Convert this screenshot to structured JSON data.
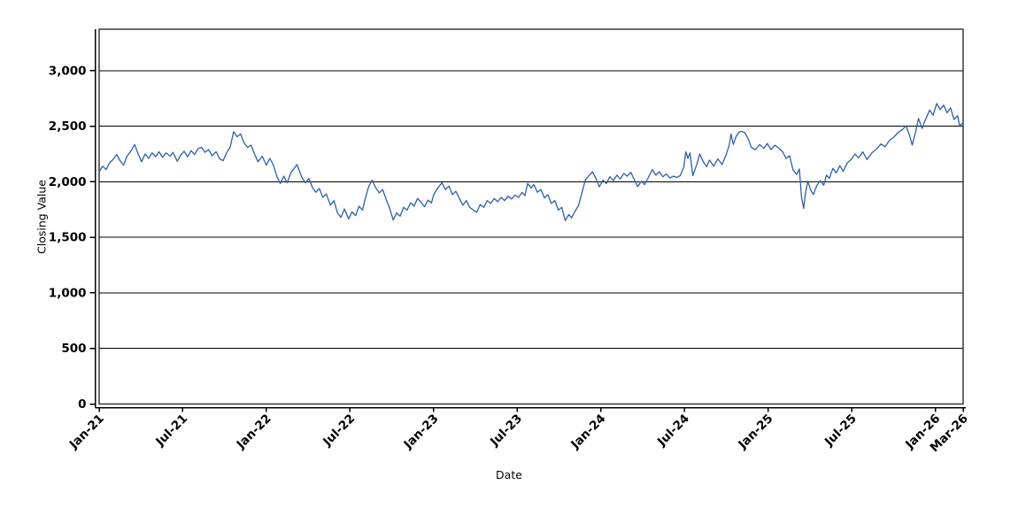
{
  "chart_data": {
    "type": "line",
    "title": "",
    "xlabel": "Date",
    "ylabel": "Closing Value",
    "grid": "horizontal",
    "legend": "none",
    "xlim_months": [
      0,
      62
    ],
    "x_axis_epoch": "Jan-21",
    "ylim": [
      0,
      3373
    ],
    "x_ticks": [
      {
        "m": 0,
        "label": "Jan-21"
      },
      {
        "m": 6,
        "label": "Jul-21"
      },
      {
        "m": 12,
        "label": "Jan-22"
      },
      {
        "m": 18,
        "label": "Jul-22"
      },
      {
        "m": 24,
        "label": "Jan-23"
      },
      {
        "m": 30,
        "label": "Jul-23"
      },
      {
        "m": 36,
        "label": "Jan-24"
      },
      {
        "m": 42,
        "label": "Jul-24"
      },
      {
        "m": 48,
        "label": "Jan-25"
      },
      {
        "m": 54,
        "label": "Jul-25"
      },
      {
        "m": 60,
        "label": "Jan-26"
      },
      {
        "m": 62,
        "label": "Mar-26"
      }
    ],
    "y_ticks": [
      {
        "v": 0,
        "label": "0"
      },
      {
        "v": 500,
        "label": "500"
      },
      {
        "v": 1000,
        "label": "1,000"
      },
      {
        "v": 1500,
        "label": "1,500"
      },
      {
        "v": 2000,
        "label": "2,000"
      },
      {
        "v": 2500,
        "label": "2,500"
      },
      {
        "v": 3000,
        "label": "3,000"
      }
    ],
    "colors": {
      "line": "#2d5fa8",
      "grid": "#000000",
      "frame": "#2b2b2b",
      "axis": "#000000",
      "background": "#ffffff"
    },
    "series": [
      {
        "name": "Closing Value",
        "points": [
          [
            0,
            2090
          ],
          [
            0.25,
            2140
          ],
          [
            0.5,
            2110
          ],
          [
            0.75,
            2170
          ],
          [
            1,
            2200
          ],
          [
            1.25,
            2245
          ],
          [
            1.5,
            2190
          ],
          [
            1.75,
            2150
          ],
          [
            2,
            2230
          ],
          [
            2.3,
            2280
          ],
          [
            2.55,
            2335
          ],
          [
            2.8,
            2250
          ],
          [
            3.05,
            2180
          ],
          [
            3.3,
            2250
          ],
          [
            3.55,
            2210
          ],
          [
            3.8,
            2260
          ],
          [
            4.05,
            2225
          ],
          [
            4.3,
            2270
          ],
          [
            4.55,
            2220
          ],
          [
            4.8,
            2260
          ],
          [
            5.1,
            2230
          ],
          [
            5.3,
            2265
          ],
          [
            5.6,
            2185
          ],
          [
            5.85,
            2240
          ],
          [
            6.1,
            2275
          ],
          [
            6.35,
            2225
          ],
          [
            6.6,
            2280
          ],
          [
            6.85,
            2245
          ],
          [
            7.1,
            2300
          ],
          [
            7.35,
            2310
          ],
          [
            7.6,
            2265
          ],
          [
            7.85,
            2290
          ],
          [
            8.1,
            2235
          ],
          [
            8.4,
            2270
          ],
          [
            8.65,
            2205
          ],
          [
            8.9,
            2190
          ],
          [
            9.15,
            2260
          ],
          [
            9.4,
            2310
          ],
          [
            9.65,
            2450
          ],
          [
            9.9,
            2405
          ],
          [
            10.15,
            2430
          ],
          [
            10.4,
            2350
          ],
          [
            10.65,
            2310
          ],
          [
            10.9,
            2330
          ],
          [
            11.15,
            2250
          ],
          [
            11.4,
            2180
          ],
          [
            11.7,
            2230
          ],
          [
            12,
            2150
          ],
          [
            12.25,
            2210
          ],
          [
            12.5,
            2150
          ],
          [
            12.75,
            2050
          ],
          [
            13,
            1985
          ],
          [
            13.25,
            2050
          ],
          [
            13.5,
            1990
          ],
          [
            13.75,
            2080
          ],
          [
            14,
            2120
          ],
          [
            14.2,
            2155
          ],
          [
            14.55,
            2040
          ],
          [
            14.8,
            1990
          ],
          [
            15.05,
            2030
          ],
          [
            15.3,
            1950
          ],
          [
            15.55,
            1905
          ],
          [
            15.8,
            1940
          ],
          [
            16.05,
            1860
          ],
          [
            16.3,
            1890
          ],
          [
            16.6,
            1790
          ],
          [
            16.85,
            1830
          ],
          [
            17.1,
            1720
          ],
          [
            17.35,
            1680
          ],
          [
            17.6,
            1755
          ],
          [
            17.9,
            1665
          ],
          [
            18.15,
            1730
          ],
          [
            18.4,
            1695
          ],
          [
            18.65,
            1780
          ],
          [
            18.9,
            1745
          ],
          [
            19.1,
            1850
          ],
          [
            19.35,
            1960
          ],
          [
            19.6,
            2015
          ],
          [
            19.85,
            1945
          ],
          [
            20.1,
            1900
          ],
          [
            20.35,
            1930
          ],
          [
            20.6,
            1840
          ],
          [
            20.85,
            1760
          ],
          [
            21.1,
            1655
          ],
          [
            21.35,
            1720
          ],
          [
            21.6,
            1690
          ],
          [
            21.85,
            1770
          ],
          [
            22.1,
            1745
          ],
          [
            22.35,
            1810
          ],
          [
            22.6,
            1780
          ],
          [
            22.85,
            1850
          ],
          [
            23.1,
            1815
          ],
          [
            23.35,
            1775
          ],
          [
            23.6,
            1835
          ],
          [
            23.85,
            1810
          ],
          [
            24,
            1880
          ],
          [
            24.3,
            1945
          ],
          [
            24.6,
            1990
          ],
          [
            24.85,
            1930
          ],
          [
            25.1,
            1960
          ],
          [
            25.35,
            1885
          ],
          [
            25.6,
            1915
          ],
          [
            25.85,
            1850
          ],
          [
            26.1,
            1790
          ],
          [
            26.35,
            1830
          ],
          [
            26.6,
            1770
          ],
          [
            26.85,
            1745
          ],
          [
            27.1,
            1725
          ],
          [
            27.35,
            1795
          ],
          [
            27.6,
            1770
          ],
          [
            27.85,
            1830
          ],
          [
            28.1,
            1805
          ],
          [
            28.35,
            1850
          ],
          [
            28.6,
            1820
          ],
          [
            28.85,
            1860
          ],
          [
            29.1,
            1830
          ],
          [
            29.35,
            1870
          ],
          [
            29.6,
            1845
          ],
          [
            29.85,
            1880
          ],
          [
            30.1,
            1860
          ],
          [
            30.35,
            1905
          ],
          [
            30.55,
            1875
          ],
          [
            30.75,
            1985
          ],
          [
            31,
            1945
          ],
          [
            31.2,
            1975
          ],
          [
            31.45,
            1905
          ],
          [
            31.7,
            1930
          ],
          [
            31.95,
            1855
          ],
          [
            32.2,
            1885
          ],
          [
            32.45,
            1805
          ],
          [
            32.7,
            1830
          ],
          [
            32.95,
            1745
          ],
          [
            33.2,
            1770
          ],
          [
            33.45,
            1650
          ],
          [
            33.7,
            1705
          ],
          [
            33.9,
            1675
          ],
          [
            34.15,
            1735
          ],
          [
            34.4,
            1785
          ],
          [
            34.65,
            1905
          ],
          [
            34.9,
            2020
          ],
          [
            35.15,
            2055
          ],
          [
            35.4,
            2090
          ],
          [
            35.65,
            2030
          ],
          [
            35.9,
            1955
          ],
          [
            36.15,
            2015
          ],
          [
            36.4,
            1985
          ],
          [
            36.65,
            2045
          ],
          [
            36.9,
            2010
          ],
          [
            37.15,
            2060
          ],
          [
            37.4,
            2025
          ],
          [
            37.65,
            2075
          ],
          [
            37.9,
            2050
          ],
          [
            38.15,
            2085
          ],
          [
            38.4,
            2020
          ],
          [
            38.65,
            1955
          ],
          [
            38.9,
            2005
          ],
          [
            39.15,
            1975
          ],
          [
            39.4,
            2035
          ],
          [
            39.7,
            2110
          ],
          [
            39.95,
            2060
          ],
          [
            40.2,
            2090
          ],
          [
            40.45,
            2045
          ],
          [
            40.7,
            2070
          ],
          [
            40.95,
            2035
          ],
          [
            41.2,
            2050
          ],
          [
            41.45,
            2040
          ],
          [
            41.7,
            2055
          ],
          [
            41.95,
            2130
          ],
          [
            42.1,
            2270
          ],
          [
            42.25,
            2210
          ],
          [
            42.4,
            2260
          ],
          [
            42.6,
            2055
          ],
          [
            42.9,
            2160
          ],
          [
            43.1,
            2250
          ],
          [
            43.35,
            2180
          ],
          [
            43.6,
            2135
          ],
          [
            43.8,
            2195
          ],
          [
            44.1,
            2140
          ],
          [
            44.4,
            2205
          ],
          [
            44.7,
            2155
          ],
          [
            44.95,
            2230
          ],
          [
            45.2,
            2320
          ],
          [
            45.35,
            2430
          ],
          [
            45.5,
            2335
          ],
          [
            45.7,
            2405
          ],
          [
            45.9,
            2445
          ],
          [
            46.1,
            2455
          ],
          [
            46.35,
            2440
          ],
          [
            46.6,
            2380
          ],
          [
            46.8,
            2310
          ],
          [
            47.1,
            2290
          ],
          [
            47.4,
            2335
          ],
          [
            47.7,
            2300
          ],
          [
            47.95,
            2345
          ],
          [
            48.2,
            2290
          ],
          [
            48.5,
            2330
          ],
          [
            48.8,
            2300
          ],
          [
            49.05,
            2270
          ],
          [
            49.3,
            2210
          ],
          [
            49.55,
            2235
          ],
          [
            49.8,
            2105
          ],
          [
            50.05,
            2065
          ],
          [
            50.25,
            2115
          ],
          [
            50.4,
            1865
          ],
          [
            50.55,
            1760
          ],
          [
            50.7,
            1905
          ],
          [
            50.85,
            2005
          ],
          [
            51.05,
            1930
          ],
          [
            51.25,
            1885
          ],
          [
            51.5,
            1965
          ],
          [
            51.75,
            2010
          ],
          [
            52,
            1970
          ],
          [
            52.2,
            2060
          ],
          [
            52.4,
            2030
          ],
          [
            52.65,
            2120
          ],
          [
            52.9,
            2080
          ],
          [
            53.15,
            2145
          ],
          [
            53.4,
            2095
          ],
          [
            53.7,
            2170
          ],
          [
            54,
            2205
          ],
          [
            54.25,
            2250
          ],
          [
            54.5,
            2215
          ],
          [
            54.8,
            2270
          ],
          [
            55.1,
            2200
          ],
          [
            55.45,
            2260
          ],
          [
            55.8,
            2295
          ],
          [
            56.1,
            2340
          ],
          [
            56.4,
            2315
          ],
          [
            56.7,
            2370
          ],
          [
            57.05,
            2405
          ],
          [
            57.35,
            2445
          ],
          [
            57.65,
            2470
          ],
          [
            57.9,
            2505
          ],
          [
            58.15,
            2420
          ],
          [
            58.35,
            2330
          ],
          [
            58.6,
            2455
          ],
          [
            58.8,
            2570
          ],
          [
            59.05,
            2480
          ],
          [
            59.3,
            2560
          ],
          [
            59.6,
            2645
          ],
          [
            59.85,
            2600
          ],
          [
            60.1,
            2705
          ],
          [
            60.35,
            2650
          ],
          [
            60.6,
            2690
          ],
          [
            60.85,
            2620
          ],
          [
            61.1,
            2665
          ],
          [
            61.35,
            2560
          ],
          [
            61.6,
            2595
          ],
          [
            61.75,
            2505
          ],
          [
            62,
            2530
          ]
        ]
      }
    ]
  }
}
